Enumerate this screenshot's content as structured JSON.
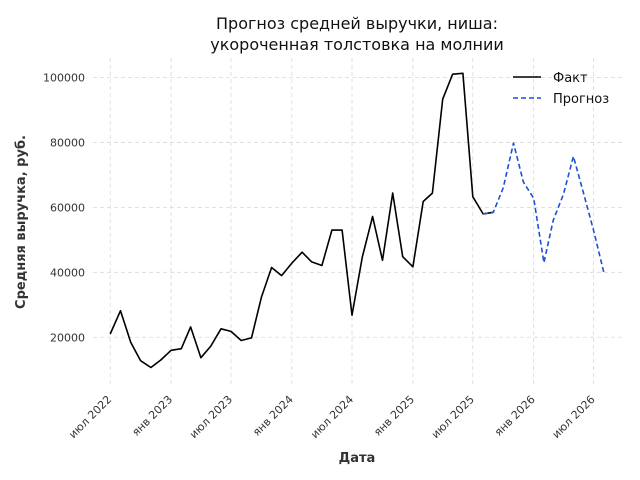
{
  "chart_data": {
    "type": "line",
    "title": "Прогноз средней выручки, ниша:\nукороченная толстовка на молнии",
    "title_lines": [
      "Прогноз средней выручки, ниша:",
      "укороченная толстовка на молнии"
    ],
    "xlabel": "Дата",
    "ylabel": "Средняя выручка, руб.",
    "xlim": [
      "2022-05-10",
      "2026-09-25"
    ],
    "ylim": [
      5000,
      106000
    ],
    "grid": true,
    "legend_position": "top-right",
    "x_ticks": [
      {
        "date": "2022-07-01",
        "label": "июл 2022"
      },
      {
        "date": "2023-01-01",
        "label": "янв 2023"
      },
      {
        "date": "2023-07-01",
        "label": "июл 2023"
      },
      {
        "date": "2024-01-01",
        "label": "янв 2024"
      },
      {
        "date": "2024-07-01",
        "label": "июл 2024"
      },
      {
        "date": "2025-01-01",
        "label": "янв 2025"
      },
      {
        "date": "2025-07-01",
        "label": "июл 2025"
      },
      {
        "date": "2026-01-01",
        "label": "янв 2026"
      },
      {
        "date": "2026-07-01",
        "label": "июл 2026"
      }
    ],
    "y_ticks": [
      {
        "value": 20000,
        "label": "20000"
      },
      {
        "value": 40000,
        "label": "40000"
      },
      {
        "value": 60000,
        "label": "60000"
      },
      {
        "value": 80000,
        "label": "80000"
      },
      {
        "value": 100000,
        "label": "100000"
      }
    ],
    "series": [
      {
        "name": "Факт",
        "color": "#000000",
        "style": "solid",
        "points": [
          [
            "2022-07-01",
            21000
          ],
          [
            "2022-08-01",
            28200
          ],
          [
            "2022-09-01",
            18500
          ],
          [
            "2022-10-01",
            12800
          ],
          [
            "2022-11-01",
            10700
          ],
          [
            "2022-12-01",
            13000
          ],
          [
            "2023-01-01",
            16000
          ],
          [
            "2023-02-01",
            16500
          ],
          [
            "2023-03-01",
            23200
          ],
          [
            "2023-04-01",
            13700
          ],
          [
            "2023-05-01",
            17300
          ],
          [
            "2023-06-01",
            22600
          ],
          [
            "2023-07-01",
            21800
          ],
          [
            "2023-08-01",
            19000
          ],
          [
            "2023-09-01",
            19800
          ],
          [
            "2023-10-01",
            32300
          ],
          [
            "2023-11-01",
            41500
          ],
          [
            "2023-12-01",
            39000
          ],
          [
            "2024-01-01",
            42800
          ],
          [
            "2024-02-01",
            46200
          ],
          [
            "2024-03-01",
            43200
          ],
          [
            "2024-04-01",
            42100
          ],
          [
            "2024-05-01",
            53000
          ],
          [
            "2024-06-01",
            53000
          ],
          [
            "2024-07-01",
            26800
          ],
          [
            "2024-08-01",
            44700
          ],
          [
            "2024-09-01",
            57200
          ],
          [
            "2024-10-01",
            43700
          ],
          [
            "2024-11-01",
            64400
          ],
          [
            "2024-12-01",
            44800
          ],
          [
            "2025-01-01",
            41700
          ],
          [
            "2025-02-01",
            61800
          ],
          [
            "2025-03-01",
            64400
          ],
          [
            "2025-04-01",
            93300
          ],
          [
            "2025-05-01",
            101000
          ],
          [
            "2025-06-01",
            101300
          ],
          [
            "2025-07-01",
            63300
          ],
          [
            "2025-08-01",
            58000
          ],
          [
            "2025-09-01",
            58500
          ]
        ]
      },
      {
        "name": "Прогноз",
        "color": "#1f4fd6",
        "style": "dashed",
        "points": [
          [
            "2025-08-01",
            58000
          ],
          [
            "2025-09-01",
            58500
          ],
          [
            "2025-10-01",
            66000
          ],
          [
            "2025-11-01",
            79800
          ],
          [
            "2025-12-01",
            67800
          ],
          [
            "2026-01-01",
            62800
          ],
          [
            "2026-02-01",
            43000
          ],
          [
            "2026-03-01",
            56000
          ],
          [
            "2026-04-01",
            64000
          ],
          [
            "2026-05-01",
            75700
          ],
          [
            "2026-06-01",
            64300
          ],
          [
            "2026-07-01",
            53000
          ],
          [
            "2026-08-01",
            40000
          ]
        ]
      }
    ]
  }
}
